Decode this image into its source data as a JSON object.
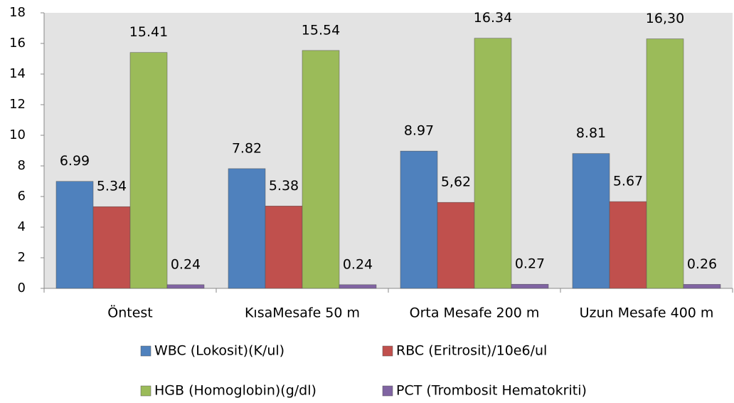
{
  "chart_data": {
    "type": "bar",
    "categories": [
      "Öntest",
      "KısaMesafe 50 m",
      "Orta Mesafe 200 m",
      "Uzun Mesafe 400 m"
    ],
    "series": [
      {
        "name": "WBC (Lokosit)(K/ul)",
        "color": "#4f81bd",
        "values": [
          6.99,
          7.82,
          8.97,
          8.81
        ],
        "value_labels": [
          "6.99",
          "7.82",
          "8.97",
          "8.81"
        ]
      },
      {
        "name": "RBC (Eritrosit)/10e6/ul",
        "color": "#c0504d",
        "values": [
          5.34,
          5.38,
          5.62,
          5.67
        ],
        "value_labels": [
          "5.34",
          "5.38",
          "5,62",
          "5.67"
        ]
      },
      {
        "name": "HGB (Homoglobin)(g/dl)",
        "color": "#9bbb59",
        "values": [
          15.41,
          15.54,
          16.34,
          16.3
        ],
        "value_labels": [
          "15.41",
          "15.54",
          "16.34",
          "16,30"
        ]
      },
      {
        "name": "PCT (Trombosit Hematokriti)",
        "color": "#8064a2",
        "values": [
          0.24,
          0.24,
          0.27,
          0.26
        ],
        "value_labels": [
          "0.24",
          "0.24",
          "0.27",
          "0.26"
        ]
      }
    ],
    "ylim": [
      0,
      18
    ],
    "yticks": [
      0,
      2,
      4,
      6,
      8,
      10,
      12,
      14,
      16,
      18
    ],
    "grid": false
  }
}
